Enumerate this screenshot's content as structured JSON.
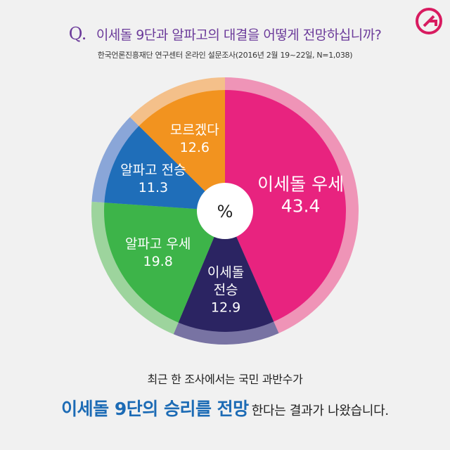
{
  "header": {
    "q_mark": "Q.",
    "question": "이세돌 9단과 알파고의 대결을 어떻게 전망하십니까?",
    "subtitle": "한국언론진흥재단 연구센터 온라인 설문조사(2016년 2월 19~22일, N=1,038)"
  },
  "logo": {
    "icon": "g-logo-icon",
    "color": "#d81b60"
  },
  "chart_data": {
    "type": "pie",
    "unit_label": "%",
    "slices": [
      {
        "label": "이세돌 우세",
        "label_lines": [
          "이세돌 우세"
        ],
        "value": 43.4,
        "display": "43.4",
        "color": "#e8237f",
        "ring_color": "#ef94b7"
      },
      {
        "label": "이세돌 전승",
        "label_lines": [
          "이세돌",
          "전승"
        ],
        "value": 12.9,
        "display": "12.9",
        "color": "#2b2462",
        "ring_color": "#7873a3"
      },
      {
        "label": "알파고 우세",
        "label_lines": [
          "알파고 우세"
        ],
        "value": 19.8,
        "display": "19.8",
        "color": "#3db449",
        "ring_color": "#9dd49d"
      },
      {
        "label": "알파고 전승",
        "label_lines": [
          "알파고 전승"
        ],
        "value": 11.3,
        "display": "11.3",
        "color": "#1f6eb9",
        "ring_color": "#8aa6d8"
      },
      {
        "label": "모르겠다",
        "label_lines": [
          "모르겠다"
        ],
        "value": 12.6,
        "display": "12.6",
        "color": "#f2931f",
        "ring_color": "#f4c08a"
      }
    ]
  },
  "footer": {
    "line1": "최근 한 조사에서는 국민 과반수가",
    "highlight": "이세돌 9단의 승리를 전망",
    "rest": "한다는 결과가 나왔습니다."
  }
}
